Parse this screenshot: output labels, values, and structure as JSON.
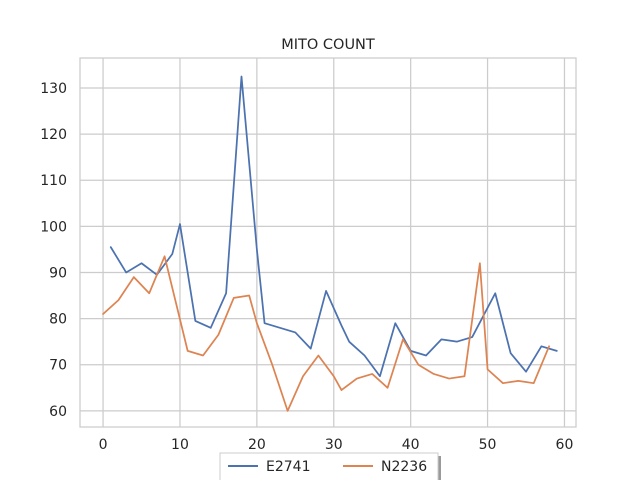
{
  "chart_data": {
    "type": "line",
    "title": "MITO COUNT",
    "xlabel": "",
    "ylabel": "",
    "xlim": [
      -3,
      61.5
    ],
    "ylim": [
      56.5,
      136.5
    ],
    "x_ticks": [
      0,
      10,
      20,
      30,
      40,
      50,
      60
    ],
    "y_ticks": [
      60,
      70,
      80,
      90,
      100,
      110,
      120,
      130
    ],
    "grid": true,
    "legend_position": "bottom-center",
    "series": [
      {
        "name": "E2741",
        "color": "#4c72b0",
        "x": [
          1,
          3,
          5,
          7,
          9,
          10,
          12,
          14,
          16,
          18,
          20,
          21,
          23,
          25,
          27,
          29,
          31,
          32,
          34,
          36,
          38,
          40,
          42,
          44,
          46,
          48,
          51,
          53,
          55,
          57,
          59
        ],
        "y": [
          95.5,
          90,
          92,
          89.5,
          94,
          100.5,
          79.5,
          78,
          85.5,
          132.5,
          95,
          79,
          78,
          77,
          73.5,
          86,
          78.5,
          75,
          72,
          67.5,
          79,
          73,
          72,
          75.5,
          75,
          76,
          85.5,
          72.5,
          68.5,
          74,
          73
        ]
      },
      {
        "name": "N2236",
        "color": "#dd8452",
        "x": [
          0,
          2,
          4,
          6,
          8,
          11,
          13,
          15,
          17,
          19,
          20,
          22,
          24,
          26,
          28,
          30,
          31,
          33,
          35,
          37,
          39,
          41,
          43,
          45,
          47,
          49,
          50,
          52,
          54,
          56,
          58
        ],
        "y": [
          81,
          84,
          89,
          85.5,
          93.5,
          73,
          72,
          76.5,
          84.5,
          85,
          79,
          70,
          60,
          67.5,
          72,
          67.5,
          64.5,
          67,
          68,
          65,
          75.5,
          70,
          68,
          67,
          67.5,
          92,
          69,
          66,
          66.5,
          66,
          74
        ]
      }
    ]
  }
}
